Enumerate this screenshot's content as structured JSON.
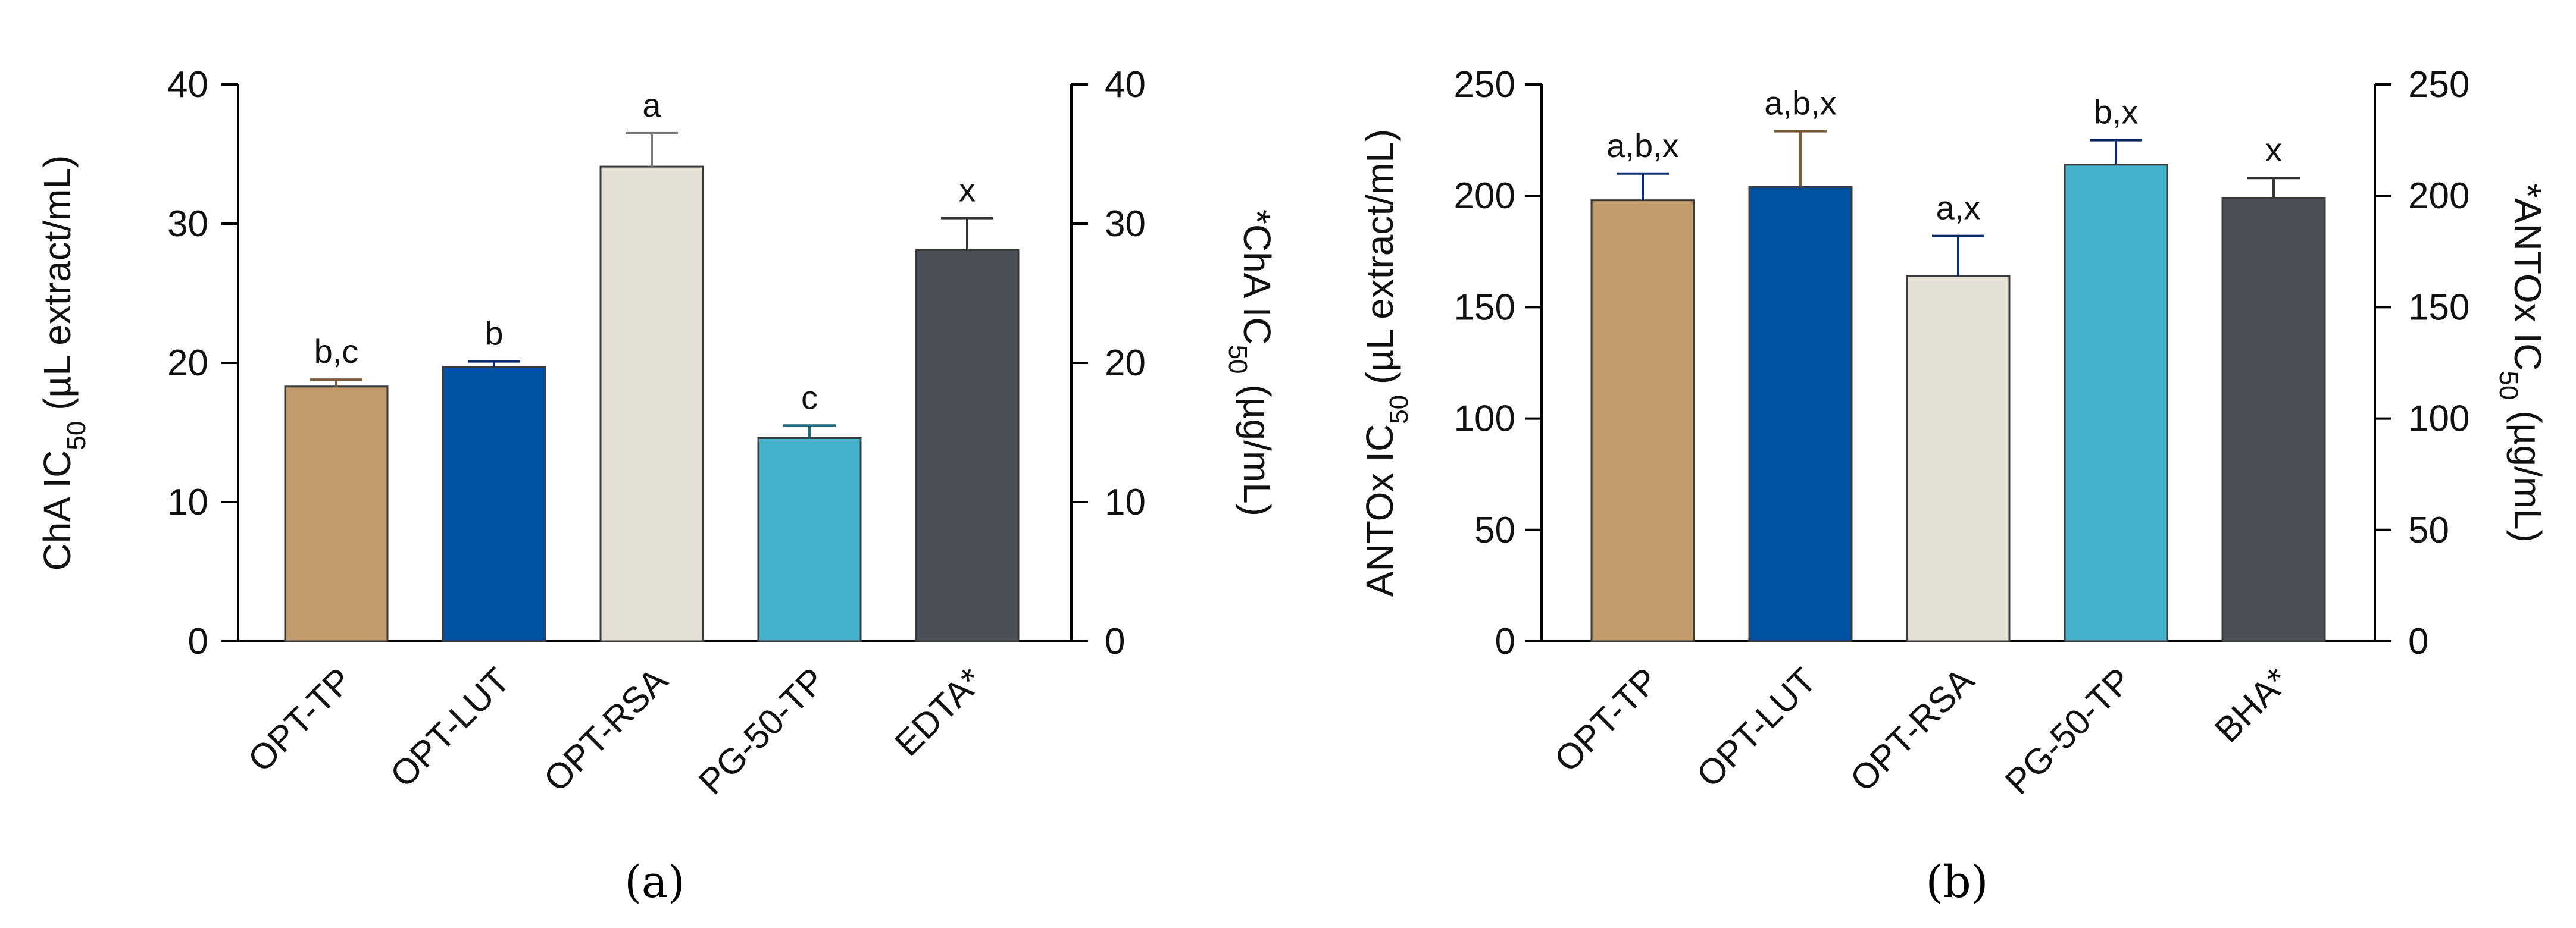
{
  "chart_data": [
    {
      "type": "bar",
      "panel_label": "a",
      "categories": [
        "OPT-TP",
        "OPT-LUT",
        "OPT-RSA",
        "PG-50-TP",
        "EDTA*"
      ],
      "values": [
        18.3,
        19.7,
        34.1,
        14.6,
        28.1
      ],
      "errors": [
        0.5,
        0.4,
        2.4,
        0.9,
        2.3
      ],
      "letters": [
        "b,c",
        "b",
        "a",
        "c",
        "x"
      ],
      "colors": [
        "#C29B6D",
        "#0052A5",
        "#E4E0D6",
        "#44B1CD",
        "#4B4F56"
      ],
      "error_colors": [
        "#7a5c38",
        "#0a2a6b",
        "#777777",
        "#1d6d84",
        "#333333"
      ],
      "ylabel": "ChA  IC50 (µL extract/mL)",
      "ylabel_right": "*ChA  IC50 (µg/mL)",
      "ylim": [
        0,
        40
      ],
      "yticks": [
        0,
        10,
        20,
        30,
        40
      ],
      "ylim_right": [
        0,
        40
      ],
      "yticks_right": [
        0,
        10,
        20,
        30,
        40
      ],
      "grid": false
    },
    {
      "type": "bar",
      "panel_label": "b",
      "categories": [
        "OPT-TP",
        "OPT-LUT",
        "OPT-RSA",
        "PG-50-TP",
        "BHA*"
      ],
      "values": [
        198,
        204,
        164,
        214,
        199
      ],
      "errors": [
        12,
        25,
        18,
        11,
        9
      ],
      "letters": [
        "a,b,x",
        "a,b,x",
        "a,x",
        "b,x",
        "x"
      ],
      "colors": [
        "#C29B6D",
        "#0052A5",
        "#E4E0D6",
        "#44B1CD",
        "#4B4F56"
      ],
      "error_colors": [
        "#0a2a6b",
        "#7a5c38",
        "#0a2a6b",
        "#0a2a6b",
        "#333333"
      ],
      "ylabel": "ANTOx IC50 (µL extract/mL)",
      "ylabel_right": "*ANTOx IC50 (µg/mL)",
      "ylim": [
        0,
        250
      ],
      "yticks": [
        0,
        50,
        100,
        150,
        200,
        250
      ],
      "ylim_right": [
        0,
        250
      ],
      "yticks_right": [
        0,
        50,
        100,
        150,
        200,
        250
      ],
      "grid": false
    }
  ],
  "captions": [
    "(a)",
    "(b)"
  ]
}
